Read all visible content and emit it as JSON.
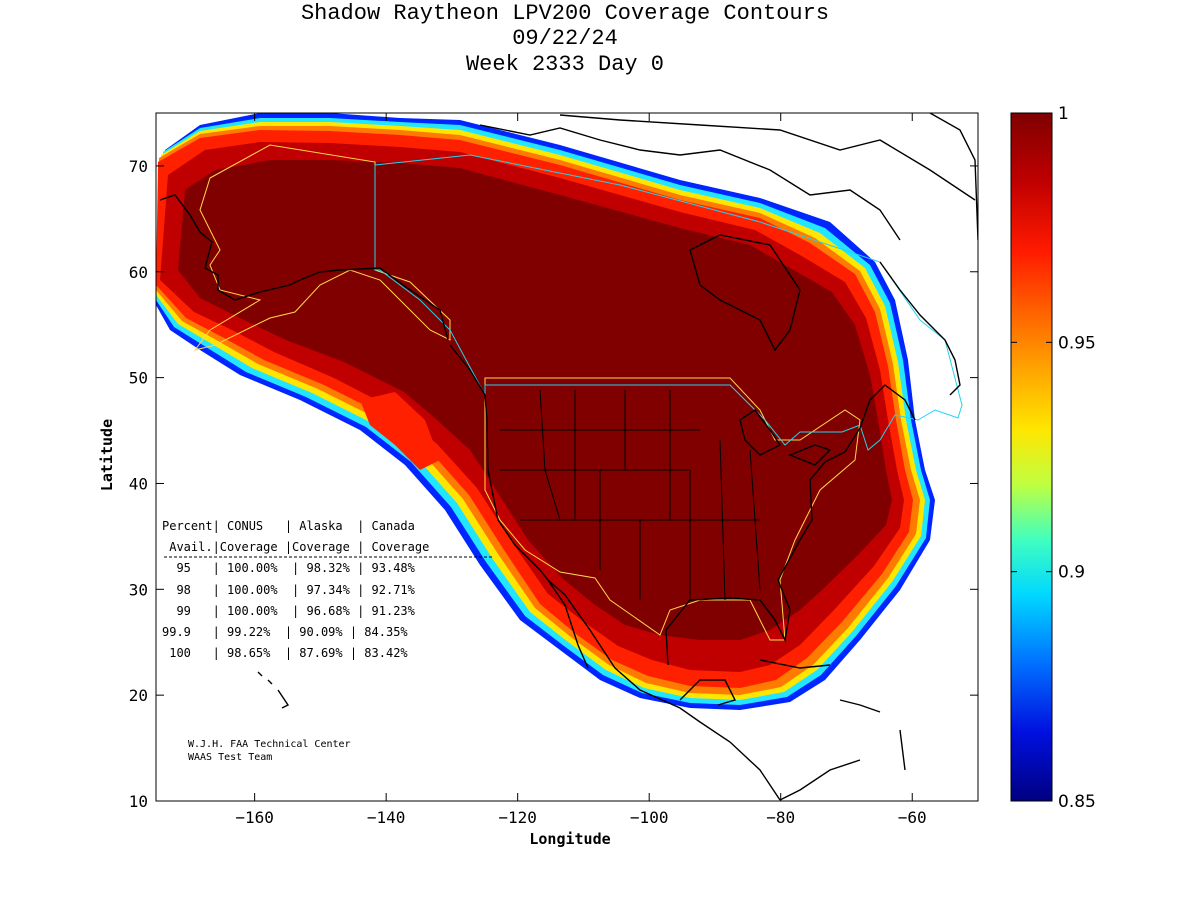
{
  "header": {
    "line1": "Shadow Raytheon LPV200 Coverage Contours",
    "line2": "09/22/24",
    "line3": "Week 2333 Day 0"
  },
  "axes": {
    "xlabel": "Longitude",
    "ylabel": "Latitude",
    "x_range": [
      -175,
      -50
    ],
    "y_range": [
      10,
      75
    ],
    "x_ticks": [
      -160,
      -140,
      -120,
      -100,
      -80,
      -60
    ],
    "y_ticks": [
      10,
      20,
      30,
      40,
      50,
      60,
      70
    ],
    "x_tick_labels": [
      "−160",
      "−140",
      "−120",
      "−100",
      "−80",
      "−60"
    ],
    "y_tick_labels": [
      "10",
      "20",
      "30",
      "40",
      "50",
      "60",
      "70"
    ]
  },
  "colorbar": {
    "min": 0.85,
    "max": 1,
    "ticks": [
      {
        "value": 1,
        "label": "1"
      },
      {
        "value": 0.95,
        "label": "0.95"
      },
      {
        "value": 0.9,
        "label": "0.9"
      },
      {
        "value": 0.85,
        "label": "0.85"
      }
    ]
  },
  "colors": {
    "core": "#800000",
    "coverage_boundary": "#ffd84a",
    "canada_boundary": "#22d3ee",
    "coastline": "#000000"
  },
  "table": {
    "header1": "Percent| CONUS   | Alaska  | Canada",
    "header2": " Avail.|Coverage |Coverage | Coverage",
    "rows": [
      "  95   | 100.00%  | 98.32% | 93.48%",
      "  98   | 100.00%  | 97.34% | 92.71%",
      "  99   | 100.00%  | 96.68% | 91.23%",
      "99.9   | 99.22%  | 90.09% | 84.35%",
      " 100   | 98.65%  | 87.69% | 83.42%"
    ]
  },
  "credits": {
    "line1": "W.J.H. FAA Technical Center",
    "line2": "WAAS Test Team"
  }
}
